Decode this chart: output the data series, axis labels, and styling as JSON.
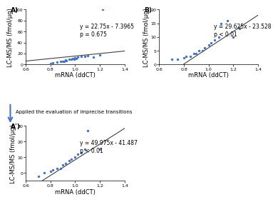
{
  "panel_A": {
    "label": "A)",
    "equation": "y = 22.75x - 7.3965",
    "pval": "p = 0.675",
    "slope": 22.75,
    "intercept": -7.3965,
    "x": [
      0.8,
      0.82,
      0.85,
      0.88,
      0.9,
      0.91,
      0.92,
      0.93,
      0.95,
      0.97,
      0.98,
      0.99,
      1.0,
      1.01,
      1.02,
      1.05,
      1.08,
      1.1,
      1.15,
      1.2,
      1.22
    ],
    "y": [
      2,
      3,
      4,
      5,
      6,
      6,
      8,
      7,
      9,
      10,
      11,
      10,
      12,
      11,
      13,
      15,
      15,
      16,
      14,
      17,
      100
    ],
    "xlabel": "mRNA (ddCT)",
    "ylabel": "LC-MS/MS (fmol/μg)",
    "xlim": [
      0.6,
      1.4
    ],
    "ylim": [
      0,
      100
    ]
  },
  "panel_B": {
    "label": "B)",
    "equation": "y = 29.625x - 23.528",
    "pval": "p < 0.01",
    "slope": 29.625,
    "intercept": -23.528,
    "x": [
      0.7,
      0.75,
      0.8,
      0.82,
      0.85,
      0.88,
      0.9,
      0.92,
      0.95,
      0.97,
      1.0,
      1.02,
      1.05,
      1.08,
      1.1,
      1.15,
      1.2,
      1.25
    ],
    "y": [
      2,
      2,
      2.5,
      3,
      3,
      4,
      4,
      5,
      5,
      6,
      7,
      8,
      9,
      10,
      15,
      16,
      10,
      13
    ],
    "xlabel": "mRNA (ddCT)",
    "ylabel": "LC-MS/MS (fmol/μg)",
    "xlim": [
      0.6,
      1.4
    ],
    "ylim": [
      0,
      20
    ]
  },
  "panel_Ap": {
    "label": "A')",
    "equation": "y = 49.975x - 41.487",
    "pval": "p < 0.01",
    "slope": 49.975,
    "intercept": -41.487,
    "x": [
      0.7,
      0.75,
      0.8,
      0.82,
      0.85,
      0.88,
      0.9,
      0.92,
      0.95,
      0.97,
      1.0,
      1.02,
      1.05,
      1.08,
      1.1,
      1.2
    ],
    "y": [
      -2,
      0,
      1,
      2,
      3,
      3,
      5,
      6,
      8,
      9,
      10,
      12,
      13,
      15,
      27,
      15
    ],
    "xlabel": "mRNA (ddCT)",
    "ylabel": "LC-MS/MS (fmol/μg)",
    "xlim": [
      0.6,
      1.4
    ],
    "ylim": [
      -5,
      30
    ]
  },
  "arrow_text": "Applied the evaluation of imprecise transitions",
  "dot_color": "#4472C4",
  "line_color": "#404040",
  "bg_color": "#ffffff",
  "text_fontsize": 5.5,
  "label_fontsize": 6,
  "axis_fontsize": 5,
  "tick_fontsize": 4.5
}
